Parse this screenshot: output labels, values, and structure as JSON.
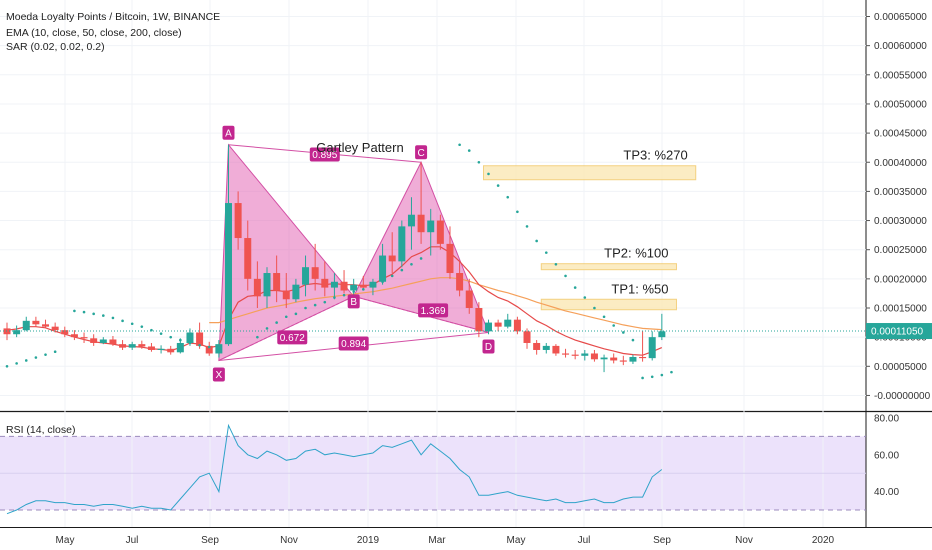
{
  "chart_data": {
    "type": "candlestick",
    "title": "Moeda Loyalty Points / Bitcoin, 1W, BINANCE",
    "indicators": [
      "EMA (10, close, 50, close, 200, close)",
      "SAR (0.02, 0.02, 0.2)"
    ],
    "price_axis": {
      "ticks": [
        "0.00065000",
        "0.00060000",
        "0.00055000",
        "0.00050000",
        "0.00045000",
        "0.00040000",
        "0.00035000",
        "0.00030000",
        "0.00025000",
        "0.00020000",
        "0.00015000",
        "0.00010000",
        "0.00005000",
        "-0.00000000"
      ],
      "range": [
        -1e-05,
        0.00069
      ]
    },
    "current_price": "0.00011050",
    "time_axis": [
      "May",
      "Jul",
      "Sep",
      "Nov",
      "2019",
      "Mar",
      "May",
      "Jul",
      "Sep",
      "Nov",
      "2020"
    ],
    "candles": [
      [
        0.000115,
        0.000125,
        9.5e-05,
        0.000105
      ],
      [
        0.000105,
        0.00012,
        0.0001,
        0.000112
      ],
      [
        0.000112,
        0.000135,
        0.00011,
        0.000128
      ],
      [
        0.000128,
        0.000135,
        0.000118,
        0.000122
      ],
      [
        0.000122,
        0.00013,
        0.000115,
        0.000118
      ],
      [
        0.000118,
        0.000125,
        0.000108,
        0.000112
      ],
      [
        0.000112,
        0.000118,
        0.0001,
        0.000105
      ],
      [
        0.000105,
        0.000112,
        9.5e-05,
        0.0001
      ],
      [
        0.0001,
        0.000108,
        9e-05,
        9.8e-05
      ],
      [
        9.8e-05,
        0.000105,
        8.5e-05,
        9e-05
      ],
      [
        9e-05,
        0.0001,
        8.8e-05,
        9.6e-05
      ],
      [
        9.6e-05,
        0.000102,
        8.5e-05,
        8.8e-05
      ],
      [
        8.8e-05,
        9.5e-05,
        7.8e-05,
        8.2e-05
      ],
      [
        8.2e-05,
        9.2e-05,
        7.8e-05,
        8.8e-05
      ],
      [
        8.8e-05,
        9.4e-05,
        8e-05,
        8.4e-05
      ],
      [
        8.4e-05,
        9e-05,
        7.5e-05,
        7.8e-05
      ],
      [
        7.8e-05,
        8.6e-05,
        7.2e-05,
        8e-05
      ],
      [
        8e-05,
        8.5e-05,
        7e-05,
        7.4e-05
      ],
      [
        7.4e-05,
        9.8e-05,
        7.2e-05,
        9e-05
      ],
      [
        9e-05,
        0.000115,
        8.5e-05,
        0.000108
      ],
      [
        0.000108,
        0.000125,
        8e-05,
        8.5e-05
      ],
      [
        8.5e-05,
        9.2e-05,
        6.8e-05,
        7.2e-05
      ],
      [
        7.2e-05,
        9.5e-05,
        6.5e-05,
        8.8e-05
      ],
      [
        8.8e-05,
        0.00043,
        8.5e-05,
        0.00033
      ],
      [
        0.00033,
        0.00035,
        0.00025,
        0.00027
      ],
      [
        0.00027,
        0.0003,
        0.00018,
        0.0002
      ],
      [
        0.0002,
        0.00023,
        0.00015,
        0.00017
      ],
      [
        0.00017,
        0.00022,
        0.00015,
        0.00021
      ],
      [
        0.00021,
        0.00024,
        0.00016,
        0.00018
      ],
      [
        0.00018,
        0.00021,
        0.00015,
        0.000165
      ],
      [
        0.000165,
        0.0002,
        0.00016,
        0.00019
      ],
      [
        0.00019,
        0.00024,
        0.00017,
        0.00022
      ],
      [
        0.00022,
        0.00026,
        0.00018,
        0.0002
      ],
      [
        0.0002,
        0.00023,
        0.00017,
        0.000185
      ],
      [
        0.000185,
        0.00021,
        0.000165,
        0.000195
      ],
      [
        0.000195,
        0.000215,
        0.000175,
        0.00018
      ],
      [
        0.00018,
        0.0002,
        0.00017,
        0.00019
      ],
      [
        0.00019,
        0.000205,
        0.00018,
        0.000185
      ],
      [
        0.000185,
        0.0002,
        0.000172,
        0.000195
      ],
      [
        0.000195,
        0.00026,
        0.00019,
        0.00024
      ],
      [
        0.00024,
        0.00028,
        0.00021,
        0.00023
      ],
      [
        0.00023,
        0.0003,
        0.00022,
        0.00029
      ],
      [
        0.00029,
        0.00034,
        0.00025,
        0.00031
      ],
      [
        0.00031,
        0.0004,
        0.00026,
        0.00028
      ],
      [
        0.00028,
        0.00032,
        0.00024,
        0.0003
      ],
      [
        0.0003,
        0.00031,
        0.00025,
        0.00026
      ],
      [
        0.00026,
        0.00029,
        0.0002,
        0.00021
      ],
      [
        0.00021,
        0.00023,
        0.00017,
        0.00018
      ],
      [
        0.00018,
        0.0002,
        0.00014,
        0.00015
      ],
      [
        0.00015,
        0.00016,
        0.0001,
        0.00011
      ],
      [
        0.00011,
        0.00013,
        0.000105,
        0.000125
      ],
      [
        0.000125,
        0.00013,
        0.00011,
        0.000118
      ],
      [
        0.000118,
        0.00014,
        0.000115,
        0.00013
      ],
      [
        0.00013,
        0.000135,
        0.000105,
        0.00011
      ],
      [
        0.00011,
        0.000115,
        8e-05,
        9e-05
      ],
      [
        9e-05,
        9.5e-05,
        7e-05,
        7.8e-05
      ],
      [
        7.8e-05,
        9e-05,
        7.2e-05,
        8.5e-05
      ],
      [
        8.5e-05,
        8.8e-05,
        6.8e-05,
        7.2e-05
      ],
      [
        7.2e-05,
        8e-05,
        6.5e-05,
        7e-05
      ],
      [
        7e-05,
        7.8e-05,
        6.2e-05,
        6.8e-05
      ],
      [
        6.8e-05,
        7.8e-05,
        6e-05,
        7.2e-05
      ],
      [
        7.2e-05,
        7.8e-05,
        5.8e-05,
        6.2e-05
      ],
      [
        6.2e-05,
        7e-05,
        4e-05,
        6.5e-05
      ],
      [
        6.5e-05,
        7.2e-05,
        5.5e-05,
        6e-05
      ],
      [
        6e-05,
        6.8e-05,
        5.2e-05,
        5.8e-05
      ],
      [
        5.8e-05,
        7e-05,
        5.4e-05,
        6.6e-05
      ],
      [
        6.6e-05,
        0.00011,
        5.8e-05,
        6.4e-05
      ],
      [
        6.4e-05,
        0.00011,
        6e-05,
        0.0001
      ],
      [
        0.0001,
        0.00014,
        9.5e-05,
        0.00011
      ]
    ],
    "ema_short": [
      0.000112,
      0.000114,
      0.000118,
      0.000118,
      0.000116,
      0.00011,
      0.000105,
      0.0001,
      9.6e-05,
      9.2e-05,
      9e-05,
      8.8e-05,
      8.5e-05,
      8.4e-05,
      8.3e-05,
      8e-05,
      7.9e-05,
      7.7e-05,
      8.2e-05,
      9e-05,
      8.8e-05,
      8.2e-05,
      8.5e-05,
      0.00013,
      0.00016,
      0.00017,
      0.000172,
      0.00018,
      0.00018,
      0.000178,
      0.000182,
      0.00019,
      0.000192,
      0.00019,
      0.000192,
      0.00019,
      0.00019,
      0.000188,
      0.00019,
      0.0002,
      0.000208,
      0.000222,
      0.000238,
      0.000245,
      0.000255,
      0.000255,
      0.000245,
      0.00023,
      0.000212,
      0.00019,
      0.000178,
      0.000168,
      0.000162,
      0.000152,
      0.00014,
      0.000128,
      0.00012,
      0.00011,
      0.000102,
      9.5e-05,
      9e-05,
      8.5e-05,
      8e-05,
      7.6e-05,
      7.2e-05,
      7e-05,
      6.9e-05,
      7.5e-05,
      8.2e-05
    ],
    "ema_long": [
      null,
      null,
      null,
      null,
      null,
      null,
      null,
      null,
      null,
      null,
      null,
      null,
      null,
      null,
      null,
      null,
      null,
      null,
      null,
      null,
      null,
      0.000125,
      0.000125,
      0.00013,
      0.000135,
      0.00014,
      0.000145,
      0.00015,
      0.000153,
      0.000156,
      0.00016,
      0.000163,
      0.000166,
      0.000168,
      0.00017,
      0.000172,
      0.000174,
      0.000176,
      0.000178,
      0.000181,
      0.000184,
      0.000188,
      0.000192,
      0.000196,
      0.0002,
      0.000202,
      0.000202,
      0.0002,
      0.000196,
      0.00019,
      0.000185,
      0.00018,
      0.000176,
      0.000171,
      0.000166,
      0.00016,
      0.000155,
      0.00015,
      0.000145,
      0.000141,
      0.000137,
      0.000133,
      0.000129,
      0.000125,
      0.000121,
      0.000118,
      0.000115,
      0.000114,
      0.000113
    ],
    "sar": [
      [
        0,
        5e-05
      ],
      [
        1,
        5.5e-05
      ],
      [
        2,
        6e-05
      ],
      [
        3,
        6.5e-05
      ],
      [
        4,
        7e-05
      ],
      [
        5,
        7.5e-05
      ],
      [
        7,
        0.000145
      ],
      [
        8,
        0.000143
      ],
      [
        9,
        0.00014
      ],
      [
        10,
        0.000137
      ],
      [
        11,
        0.000133
      ],
      [
        12,
        0.000128
      ],
      [
        13,
        0.000123
      ],
      [
        14,
        0.000118
      ],
      [
        15,
        0.000112
      ],
      [
        16,
        0.000106
      ],
      [
        17,
        0.0001
      ],
      [
        18,
        9.5e-05
      ],
      [
        19,
        9e-05
      ],
      [
        20,
        8.6e-05
      ],
      [
        21,
        8.3e-05
      ],
      [
        22,
        8e-05
      ],
      [
        26,
        0.0001
      ],
      [
        27,
        0.000115
      ],
      [
        28,
        0.000125
      ],
      [
        29,
        0.000135
      ],
      [
        30,
        0.00014
      ],
      [
        31,
        0.00015
      ],
      [
        32,
        0.000155
      ],
      [
        33,
        0.00016
      ],
      [
        34,
        0.000168
      ],
      [
        35,
        0.000172
      ],
      [
        36,
        0.000178
      ],
      [
        37,
        0.000182
      ],
      [
        38,
        0.000188
      ],
      [
        39,
        0.000195
      ],
      [
        40,
        0.000205
      ],
      [
        41,
        0.000215
      ],
      [
        42,
        0.000225
      ],
      [
        43,
        0.000235
      ],
      [
        47,
        0.00043
      ],
      [
        48,
        0.00042
      ],
      [
        49,
        0.0004
      ],
      [
        50,
        0.00038
      ],
      [
        51,
        0.00036
      ],
      [
        52,
        0.00034
      ],
      [
        53,
        0.000315
      ],
      [
        54,
        0.00029
      ],
      [
        55,
        0.000265
      ],
      [
        56,
        0.000245
      ],
      [
        57,
        0.000225
      ],
      [
        58,
        0.000205
      ],
      [
        59,
        0.000185
      ],
      [
        60,
        0.000168
      ],
      [
        61,
        0.00015
      ],
      [
        62,
        0.000135
      ],
      [
        63,
        0.00012
      ],
      [
        64,
        0.000108
      ],
      [
        65,
        9.5e-05
      ],
      [
        66,
        3e-05
      ],
      [
        67,
        3.2e-05
      ],
      [
        68,
        3.5e-05
      ],
      [
        69,
        4e-05
      ]
    ],
    "pattern": {
      "name": "Gartley Pattern",
      "points": {
        "X": [
          22,
          6e-05
        ],
        "A": [
          23,
          0.00043
        ],
        "B": [
          36,
          0.00017
        ],
        "C": [
          43,
          0.0004
        ],
        "D": [
          50,
          0.000108
        ]
      },
      "ratios": {
        "XB": "0.672",
        "AC": "0.895",
        "XD": "0.894",
        "BD": "1.369"
      }
    },
    "targets": [
      {
        "label": "TP1: %50",
        "from": 0.000147,
        "to": 0.000165,
        "x0": 56,
        "x1": 69
      },
      {
        "label": "TP2: %100",
        "from": 0.000218,
        "to": 0.000226,
        "x0": 56,
        "x1": 69
      },
      {
        "label": "TP3: %270",
        "from": 0.00037,
        "to": 0.000394,
        "x0": 50,
        "x1": 71
      }
    ],
    "rsi": {
      "title": "RSI (14, close)",
      "ticks": [
        "80.00",
        "60.00",
        "40.00"
      ],
      "upper": 70,
      "lower": 30,
      "values": [
        28,
        30,
        33,
        35,
        35,
        34,
        34,
        33,
        33,
        32,
        33,
        33,
        32,
        31,
        32,
        31,
        31,
        30,
        36,
        42,
        48,
        50,
        40,
        76,
        65,
        60,
        58,
        62,
        60,
        57,
        58,
        62,
        63,
        60,
        61,
        60,
        59,
        60,
        61,
        65,
        64,
        66,
        68,
        60,
        66,
        62,
        58,
        52,
        48,
        38,
        38,
        39,
        40,
        38,
        37,
        36,
        35,
        36,
        34,
        34,
        35,
        36,
        34,
        34,
        36,
        37,
        37,
        48,
        52
      ]
    }
  }
}
